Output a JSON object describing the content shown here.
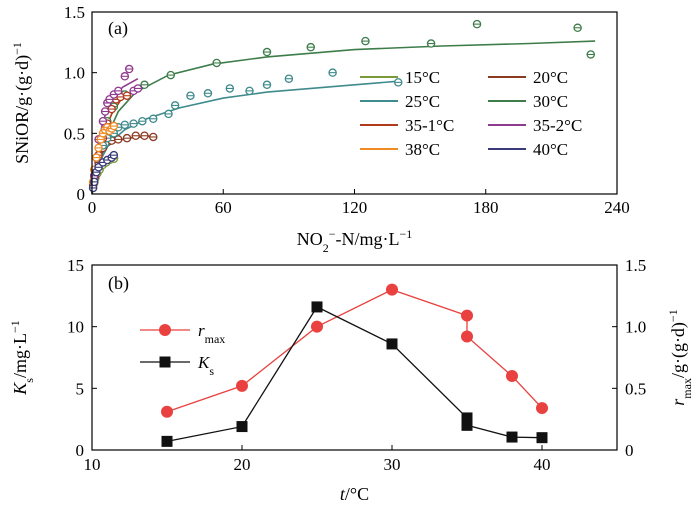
{
  "chart_data": [
    {
      "type": "scatter",
      "panel_label": "(a)",
      "xlabel_parts": [
        "NO",
        "2",
        "−",
        "-N/mg·L",
        "−1"
      ],
      "ylabel_parts": [
        "SNiOR/g·(g·d)",
        "−1"
      ],
      "xlim": [
        0,
        240
      ],
      "ylim": [
        0,
        1.5
      ],
      "x_ticks": [
        "0",
        "60",
        "120",
        "180",
        "240"
      ],
      "y_ticks": [
        "0",
        "0.5",
        "1.0",
        "1.5"
      ],
      "legend_position": "bottom-right",
      "series": [
        {
          "name": "15°C",
          "color": "#7a9a3a",
          "points": [
            [
              0.5,
              0.05
            ],
            [
              1,
              0.09
            ],
            [
              1.5,
              0.13
            ],
            [
              2.5,
              0.17
            ],
            [
              3.5,
              0.2
            ],
            [
              5,
              0.24
            ],
            [
              6.5,
              0.26
            ],
            [
              8,
              0.28
            ],
            [
              10,
              0.29
            ]
          ],
          "fit": [
            [
              0,
              0
            ],
            [
              1,
              0.085
            ],
            [
              3,
              0.17
            ],
            [
              6,
              0.23
            ],
            [
              10,
              0.28
            ],
            [
              12,
              0.3
            ]
          ]
        },
        {
          "name": "20°C",
          "color": "#8b3a22",
          "points": [
            [
              0.5,
              0.07
            ],
            [
              1.5,
              0.14
            ],
            [
              3,
              0.26
            ],
            [
              5,
              0.38
            ],
            [
              7,
              0.46
            ],
            [
              9,
              0.44
            ],
            [
              12,
              0.45
            ],
            [
              16,
              0.46
            ],
            [
              20,
              0.48
            ],
            [
              24,
              0.48
            ],
            [
              28,
              0.47
            ]
          ],
          "fit": [
            [
              0,
              0
            ],
            [
              1,
              0.12
            ],
            [
              3,
              0.28
            ],
            [
              6,
              0.38
            ],
            [
              10,
              0.43
            ],
            [
              16,
              0.46
            ],
            [
              28,
              0.48
            ]
          ]
        },
        {
          "name": "25°C",
          "color": "#3f8a8c",
          "points": [
            [
              1,
              0.12
            ],
            [
              2,
              0.2
            ],
            [
              3,
              0.3
            ],
            [
              5,
              0.4
            ],
            [
              7,
              0.46
            ],
            [
              10,
              0.5
            ],
            [
              12,
              0.55
            ],
            [
              15,
              0.57
            ],
            [
              19,
              0.58
            ],
            [
              23,
              0.6
            ],
            [
              28,
              0.62
            ],
            [
              35,
              0.66
            ],
            [
              38,
              0.73
            ],
            [
              45,
              0.81
            ],
            [
              53,
              0.83
            ],
            [
              63,
              0.87
            ],
            [
              72,
              0.85
            ],
            [
              80,
              0.9
            ],
            [
              90,
              0.95
            ],
            [
              110,
              1.0
            ],
            [
              140,
              0.92
            ]
          ],
          "fit": [
            [
              0,
              0
            ],
            [
              3,
              0.25
            ],
            [
              8,
              0.42
            ],
            [
              15,
              0.53
            ],
            [
              25,
              0.62
            ],
            [
              40,
              0.71
            ],
            [
              60,
              0.79
            ],
            [
              80,
              0.84
            ],
            [
              100,
              0.87
            ],
            [
              120,
              0.9
            ],
            [
              140,
              0.93
            ]
          ]
        },
        {
          "name": "30°C",
          "color": "#3e7d4a",
          "points": [
            [
              1,
              0.15
            ],
            [
              2,
              0.3
            ],
            [
              4,
              0.45
            ],
            [
              7,
              0.6
            ],
            [
              10,
              0.72
            ],
            [
              15,
              0.82
            ],
            [
              24,
              0.9
            ],
            [
              36,
              0.98
            ],
            [
              57,
              1.08
            ],
            [
              80,
              1.17
            ],
            [
              100,
              1.21
            ],
            [
              125,
              1.26
            ],
            [
              155,
              1.24
            ],
            [
              176,
              1.4
            ],
            [
              222,
              1.37
            ],
            [
              228,
              1.15
            ]
          ],
          "fit": [
            [
              0,
              0
            ],
            [
              5,
              0.4
            ],
            [
              12,
              0.68
            ],
            [
              20,
              0.84
            ],
            [
              35,
              0.98
            ],
            [
              55,
              1.07
            ],
            [
              80,
              1.13
            ],
            [
              120,
              1.19
            ],
            [
              160,
              1.22
            ],
            [
              200,
              1.24
            ],
            [
              230,
              1.26
            ]
          ]
        },
        {
          "name": "35-1°C",
          "color": "#b03a1a",
          "points": [
            [
              1,
              0.1
            ],
            [
              2,
              0.2
            ],
            [
              3,
              0.32
            ],
            [
              5,
              0.46
            ],
            [
              7,
              0.58
            ],
            [
              9,
              0.7
            ],
            [
              11,
              0.78
            ],
            [
              13,
              0.8
            ],
            [
              16,
              0.81
            ]
          ],
          "fit": [
            [
              0,
              0
            ],
            [
              2,
              0.25
            ],
            [
              5,
              0.48
            ],
            [
              9,
              0.66
            ],
            [
              13,
              0.77
            ],
            [
              17,
              0.82
            ]
          ]
        },
        {
          "name": "35-2°C",
          "color": "#8e3a8e",
          "points": [
            [
              1,
              0.15
            ],
            [
              2,
              0.3
            ],
            [
              3,
              0.45
            ],
            [
              5,
              0.6
            ],
            [
              6,
              0.68
            ],
            [
              7,
              0.75
            ],
            [
              8,
              0.78
            ],
            [
              10,
              0.82
            ],
            [
              12,
              0.85
            ],
            [
              15,
              0.97
            ],
            [
              17,
              1.03
            ],
            [
              19,
              0.85
            ],
            [
              21,
              0.87
            ]
          ],
          "fit": [
            [
              0,
              0
            ],
            [
              2,
              0.32
            ],
            [
              5,
              0.6
            ],
            [
              9,
              0.78
            ],
            [
              14,
              0.88
            ],
            [
              21,
              0.95
            ]
          ]
        },
        {
          "name": "38°C",
          "color": "#f08a24",
          "points": [
            [
              0.5,
              0.1
            ],
            [
              1,
              0.2
            ],
            [
              2,
              0.3
            ],
            [
              3,
              0.38
            ],
            [
              4,
              0.45
            ],
            [
              5,
              0.5
            ],
            [
              6,
              0.53
            ],
            [
              7,
              0.55
            ],
            [
              8,
              0.52
            ],
            [
              9,
              0.54
            ],
            [
              10,
              0.56
            ]
          ],
          "fit": [
            [
              0,
              0
            ],
            [
              1,
              0.18
            ],
            [
              3,
              0.38
            ],
            [
              6,
              0.51
            ],
            [
              10,
              0.56
            ]
          ]
        },
        {
          "name": "40°C",
          "color": "#3a3a7a",
          "points": [
            [
              0.5,
              0.05
            ],
            [
              1,
              0.1
            ],
            [
              2,
              0.18
            ],
            [
              3,
              0.22
            ],
            [
              5,
              0.26
            ],
            [
              7,
              0.28
            ],
            [
              9,
              0.3
            ],
            [
              10,
              0.32
            ]
          ],
          "fit": [
            [
              0,
              0
            ],
            [
              1,
              0.11
            ],
            [
              3,
              0.21
            ],
            [
              6,
              0.27
            ],
            [
              10,
              0.31
            ]
          ]
        }
      ]
    },
    {
      "type": "line",
      "panel_label": "(b)",
      "xlabel_parts": [
        "t",
        "/°C"
      ],
      "ylabel_left_parts": [
        "K",
        "s",
        "/mg·L",
        "−1"
      ],
      "ylabel_right_parts": [
        "r",
        "max",
        "/g·(g·d)",
        "−1"
      ],
      "xlim": [
        10,
        45
      ],
      "ylim_left": [
        0,
        15
      ],
      "ylim_right": [
        0,
        1.5
      ],
      "x_ticks": [
        "10",
        "20",
        "30",
        "40"
      ],
      "y_left_ticks": [
        "0",
        "5",
        "10",
        "15"
      ],
      "y_right_ticks": [
        "0",
        "0.5",
        "1.0",
        "1.5"
      ],
      "legend_position": "left",
      "series": [
        {
          "name_parts": [
            "r",
            "max"
          ],
          "axis": "right",
          "color": "#e8413f",
          "marker": "circle",
          "x": [
            15,
            20,
            25,
            30,
            35,
            35,
            38,
            40
          ],
          "y": [
            0.31,
            0.52,
            1.0,
            1.3,
            1.09,
            0.92,
            0.6,
            0.34
          ]
        },
        {
          "name_parts": [
            "K",
            "s"
          ],
          "axis": "left",
          "color": "#111111",
          "marker": "square",
          "x": [
            15,
            20,
            25,
            30,
            35,
            35,
            38,
            40
          ],
          "y": [
            0.7,
            1.9,
            11.6,
            8.6,
            2.6,
            2.0,
            1.05,
            1.0
          ]
        }
      ]
    }
  ]
}
